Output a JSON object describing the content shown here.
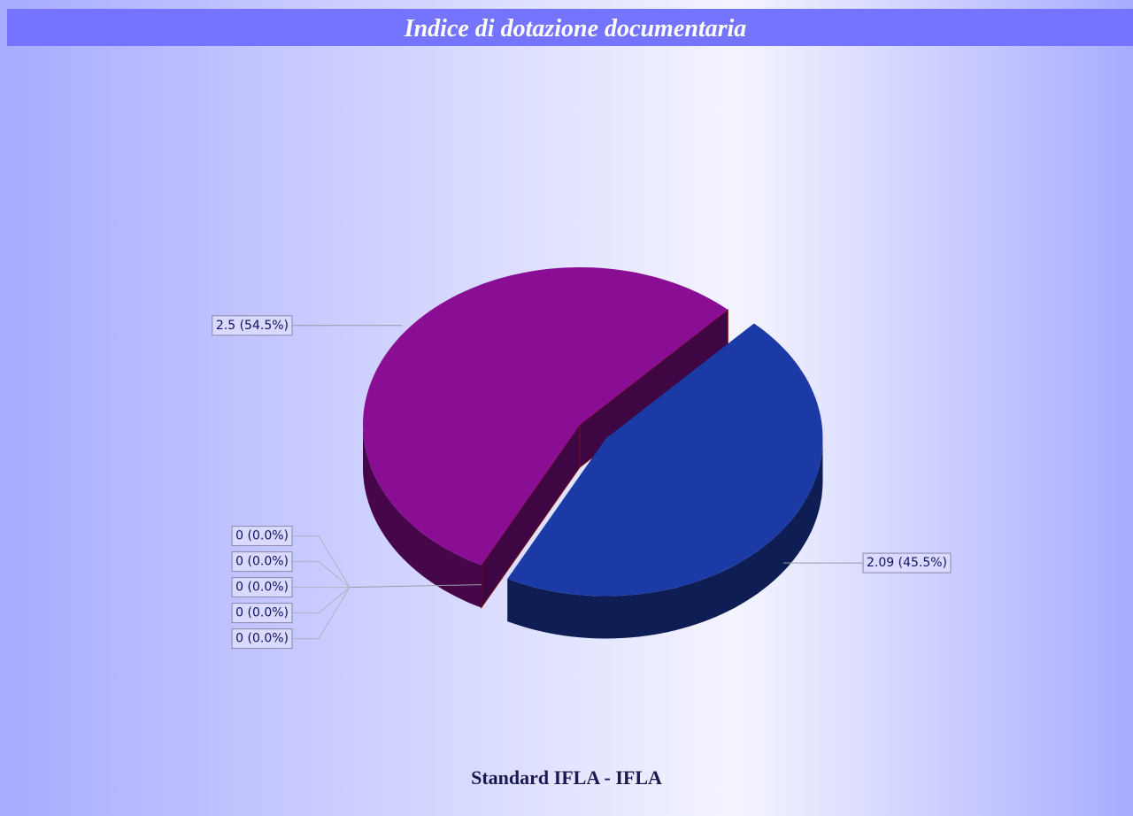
{
  "chart_data": {
    "type": "pie",
    "title": "Indice di dotazione documentaria",
    "subtitle": "Standard IFLA - IFLA",
    "values": [
      2.5,
      2.09,
      0,
      0,
      0,
      0,
      0
    ],
    "value_labels": [
      "2.5 (54.5%)",
      "2.09 (45.5%)",
      "0 (0.0%)",
      "0 (0.0%)",
      "0 (0.0%)",
      "0 (0.0%)",
      "0 (0.0%)"
    ],
    "colors": [
      "#8a0e94",
      "#1b3aa6",
      "#2e8b57",
      "#d4a017",
      "#c0392b",
      "#5dade2",
      "#7f8c8d"
    ]
  }
}
